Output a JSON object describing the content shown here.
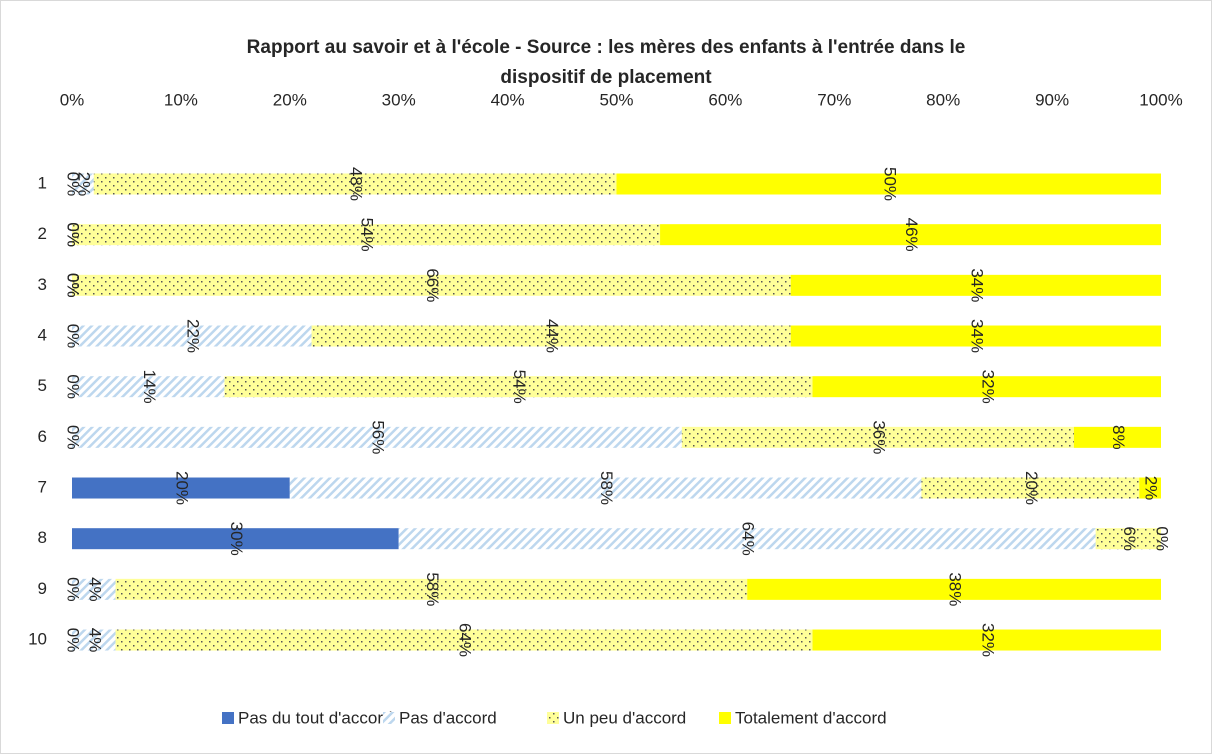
{
  "chart_data": {
    "type": "stacked-bar-horizontal",
    "title": "Rapport au savoir et à l'école - Source : les mères des enfants à l'entrée dans le dispositif de placement",
    "categories": [
      "1",
      "2",
      "3",
      "4",
      "5",
      "6",
      "7",
      "8",
      "9",
      "10"
    ],
    "series": [
      {
        "name": "Pas du tout d'accord",
        "color": "#4472c4",
        "pattern": "solid",
        "values": [
          0,
          0,
          0,
          0,
          0,
          0,
          20,
          30,
          0,
          0
        ],
        "value_labels": [
          "0%",
          "0%",
          "0%",
          "0%",
          "0%",
          "0%",
          "20%",
          "30%",
          "0%",
          "0%"
        ]
      },
      {
        "name": "Pas d'accord",
        "color": "#bdd7ee",
        "pattern": "hatch",
        "values": [
          2,
          0,
          0,
          22,
          14,
          56,
          58,
          64,
          4,
          4
        ],
        "value_labels": [
          "2%",
          "0%",
          "0%",
          "22%",
          "14%",
          "56%",
          "58%",
          "64%",
          "4%",
          "4%"
        ]
      },
      {
        "name": "Un peu d'accord",
        "color": "#ffff99",
        "pattern": "dots",
        "values": [
          48,
          54,
          66,
          44,
          54,
          36,
          20,
          6,
          58,
          64
        ],
        "value_labels": [
          "48%",
          "54%",
          "66%",
          "44%",
          "54%",
          "36%",
          "20%",
          "6%",
          "58%",
          "64%"
        ]
      },
      {
        "name": "Totalement d'accord",
        "color": "#ffff00",
        "pattern": "solid",
        "values": [
          50,
          46,
          34,
          34,
          32,
          8,
          2,
          0,
          38,
          32
        ],
        "value_labels": [
          "50%",
          "46%",
          "34%",
          "34%",
          "32%",
          "8%",
          "2%",
          "0%",
          "38%",
          "32%"
        ]
      }
    ],
    "xlim": [
      0,
      100
    ],
    "xticks": [
      {
        "value": 0,
        "label": "0%"
      },
      {
        "value": 10,
        "label": "10%"
      },
      {
        "value": 20,
        "label": "20%"
      },
      {
        "value": 30,
        "label": "30%"
      },
      {
        "value": 40,
        "label": "40%"
      },
      {
        "value": 50,
        "label": "50%"
      },
      {
        "value": 60,
        "label": "60%"
      },
      {
        "value": 70,
        "label": "70%"
      },
      {
        "value": 80,
        "label": "80%"
      },
      {
        "value": 90,
        "label": "90%"
      },
      {
        "value": 100,
        "label": "100%"
      }
    ],
    "legend": "bottom"
  }
}
